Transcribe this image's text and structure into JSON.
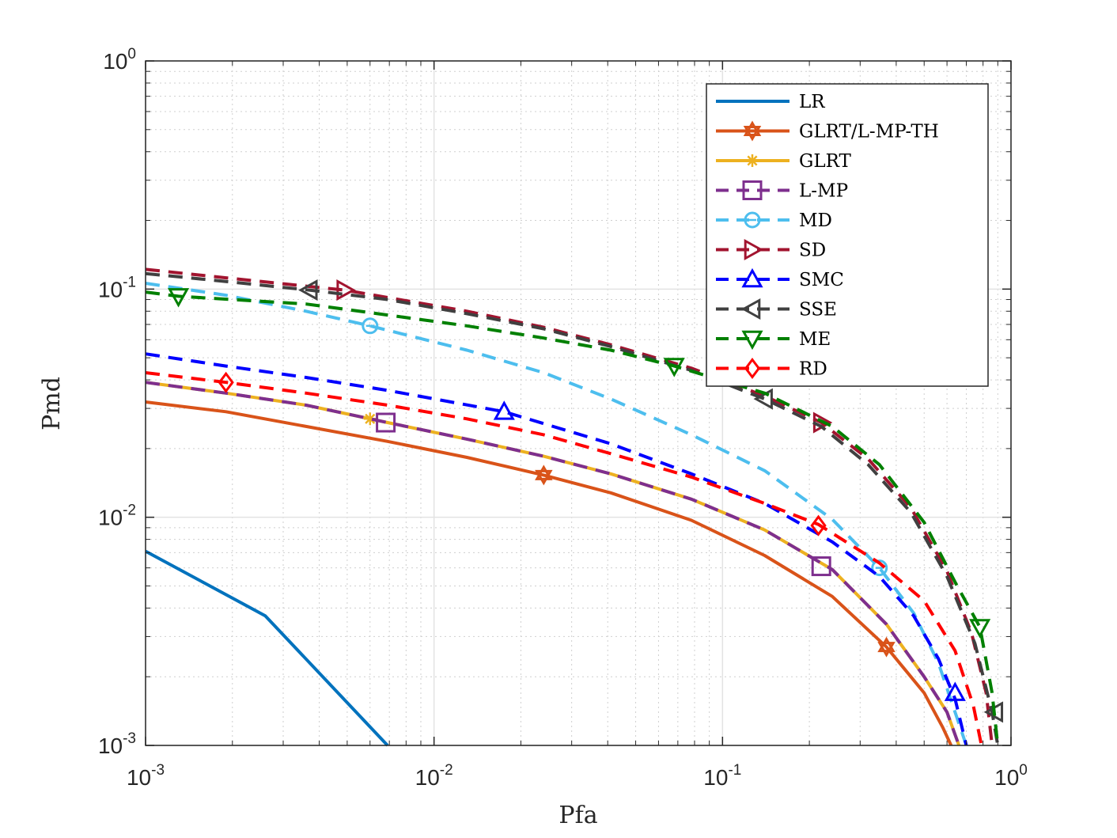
{
  "chart_data": {
    "type": "line",
    "title": "",
    "xlabel": "Pfa",
    "ylabel": "Pmd",
    "xscale": "log",
    "yscale": "log",
    "xlim": [
      0.001,
      1
    ],
    "ylim": [
      0.001,
      1
    ],
    "grid": true,
    "minor_grid": true,
    "legend_position": "top-right",
    "x_ticks": [
      {
        "base": "10",
        "exp": "-3",
        "value": 0.001
      },
      {
        "base": "10",
        "exp": "-2",
        "value": 0.01
      },
      {
        "base": "10",
        "exp": "-1",
        "value": 0.1
      },
      {
        "base": "10",
        "exp": "0",
        "value": 1
      }
    ],
    "y_ticks": [
      {
        "base": "10",
        "exp": "-3",
        "value": 0.001
      },
      {
        "base": "10",
        "exp": "-2",
        "value": 0.01
      },
      {
        "base": "10",
        "exp": "-1",
        "value": 0.1
      },
      {
        "base": "10",
        "exp": "0",
        "value": 1
      }
    ],
    "series": [
      {
        "name": "LR",
        "color": "#0072BD",
        "dash": "solid",
        "marker": "none",
        "x": [
          0.001,
          0.0026,
          0.0069
        ],
        "y": [
          0.0071,
          0.0037,
          0.001
        ],
        "markers": []
      },
      {
        "name": "GLRT/L-MP-TH",
        "color": "#D95319",
        "dash": "solid",
        "marker": "hexagram",
        "x": [
          0.001,
          0.0019,
          0.0036,
          0.0069,
          0.013,
          0.024,
          0.041,
          0.078,
          0.14,
          0.24,
          0.37,
          0.5,
          0.58,
          0.62
        ],
        "y": [
          0.032,
          0.029,
          0.025,
          0.0215,
          0.0183,
          0.0153,
          0.0128,
          0.0097,
          0.0068,
          0.0045,
          0.0027,
          0.0017,
          0.0012,
          0.001
        ],
        "markers": [
          [
            0.024,
            0.0153
          ],
          [
            0.37,
            0.0027
          ]
        ]
      },
      {
        "name": "GLRT",
        "color": "#EDB120",
        "dash": "solid",
        "marker": "asterisk",
        "x": [
          0.001,
          0.0019,
          0.0036,
          0.0069,
          0.013,
          0.024,
          0.041,
          0.078,
          0.14,
          0.24,
          0.37,
          0.5,
          0.6,
          0.66
        ],
        "y": [
          0.039,
          0.035,
          0.031,
          0.026,
          0.022,
          0.0185,
          0.0155,
          0.012,
          0.0088,
          0.0059,
          0.0034,
          0.002,
          0.0014,
          0.001
        ],
        "markers": [
          [
            0.006,
            0.027
          ]
        ]
      },
      {
        "name": "L-MP",
        "color": "#7E2F8E",
        "dash": "dashed",
        "marker": "square",
        "x": [
          0.001,
          0.0019,
          0.0036,
          0.0069,
          0.013,
          0.024,
          0.041,
          0.078,
          0.14,
          0.24,
          0.37,
          0.5,
          0.6,
          0.66
        ],
        "y": [
          0.039,
          0.035,
          0.031,
          0.026,
          0.022,
          0.0185,
          0.0155,
          0.012,
          0.0088,
          0.0059,
          0.0034,
          0.002,
          0.0014,
          0.001
        ],
        "markers": [
          [
            0.0068,
            0.026
          ],
          [
            0.22,
            0.0061
          ]
        ]
      },
      {
        "name": "MD",
        "color": "#4DBEEE",
        "dash": "dashed",
        "marker": "circle",
        "x": [
          0.001,
          0.0019,
          0.0036,
          0.006,
          0.013,
          0.024,
          0.041,
          0.078,
          0.14,
          0.24,
          0.35,
          0.46,
          0.56,
          0.64,
          0.7
        ],
        "y": [
          0.106,
          0.094,
          0.08,
          0.069,
          0.054,
          0.043,
          0.033,
          0.023,
          0.016,
          0.0098,
          0.006,
          0.0038,
          0.0023,
          0.0014,
          0.001
        ],
        "markers": [
          [
            0.006,
            0.069
          ],
          [
            0.35,
            0.006
          ]
        ]
      },
      {
        "name": "SD",
        "color": "#A2142F",
        "dash": "dashed",
        "marker": "triangle-right",
        "x": [
          0.001,
          0.0019,
          0.0036,
          0.0049,
          0.013,
          0.024,
          0.041,
          0.078,
          0.14,
          0.22,
          0.32,
          0.45,
          0.6,
          0.73,
          0.82,
          0.86
        ],
        "y": [
          0.122,
          0.112,
          0.103,
          0.099,
          0.08,
          0.068,
          0.057,
          0.045,
          0.034,
          0.026,
          0.018,
          0.011,
          0.0058,
          0.0031,
          0.0017,
          0.001
        ],
        "markers": [
          [
            0.0049,
            0.099
          ],
          [
            0.22,
            0.026
          ]
        ]
      },
      {
        "name": "SMC",
        "color": "#0000FF",
        "dash": "dashed",
        "marker": "triangle-up",
        "x": [
          0.001,
          0.0019,
          0.0036,
          0.0069,
          0.0175,
          0.041,
          0.078,
          0.14,
          0.24,
          0.35,
          0.46,
          0.56,
          0.64,
          0.7
        ],
        "y": [
          0.052,
          0.046,
          0.041,
          0.036,
          0.029,
          0.021,
          0.0155,
          0.0115,
          0.0078,
          0.0055,
          0.0037,
          0.0024,
          0.0016,
          0.001
        ],
        "markers": [
          [
            0.0175,
            0.029
          ],
          [
            0.64,
            0.0017
          ]
        ]
      },
      {
        "name": "SSE",
        "color": "#404040",
        "dash": "dashed",
        "marker": "triangle-left",
        "x": [
          0.001,
          0.0019,
          0.0037,
          0.0069,
          0.013,
          0.024,
          0.041,
          0.078,
          0.14,
          0.22,
          0.32,
          0.45,
          0.6,
          0.75,
          0.86,
          0.9
        ],
        "y": [
          0.117,
          0.108,
          0.099,
          0.09,
          0.078,
          0.067,
          0.056,
          0.044,
          0.033,
          0.025,
          0.017,
          0.0105,
          0.0055,
          0.0028,
          0.0014,
          0.001
        ],
        "markers": [
          [
            0.0037,
            0.099
          ],
          [
            0.14,
            0.033
          ],
          [
            0.88,
            0.0014
          ]
        ]
      },
      {
        "name": "ME",
        "color": "#008000",
        "dash": "dashed",
        "marker": "triangle-down",
        "x": [
          0.001,
          0.0013,
          0.0036,
          0.0069,
          0.013,
          0.024,
          0.041,
          0.068,
          0.14,
          0.24,
          0.35,
          0.5,
          0.64,
          0.78,
          0.86,
          0.9
        ],
        "y": [
          0.097,
          0.093,
          0.086,
          0.077,
          0.069,
          0.061,
          0.054,
          0.046,
          0.035,
          0.025,
          0.017,
          0.0095,
          0.0052,
          0.0033,
          0.0017,
          0.001
        ],
        "markers": [
          [
            0.0013,
            0.093
          ],
          [
            0.068,
            0.046
          ],
          [
            0.78,
            0.0033
          ]
        ]
      },
      {
        "name": "RD",
        "color": "#FF0000",
        "dash": "dashed",
        "marker": "diamond",
        "x": [
          0.001,
          0.0019,
          0.0036,
          0.0069,
          0.013,
          0.024,
          0.041,
          0.078,
          0.14,
          0.215,
          0.35,
          0.5,
          0.64,
          0.74,
          0.79
        ],
        "y": [
          0.043,
          0.039,
          0.035,
          0.031,
          0.027,
          0.023,
          0.019,
          0.015,
          0.0115,
          0.0093,
          0.0063,
          0.0043,
          0.0026,
          0.0015,
          0.001
        ],
        "markers": [
          [
            0.0019,
            0.039
          ],
          [
            0.215,
            0.0092
          ]
        ]
      }
    ]
  }
}
